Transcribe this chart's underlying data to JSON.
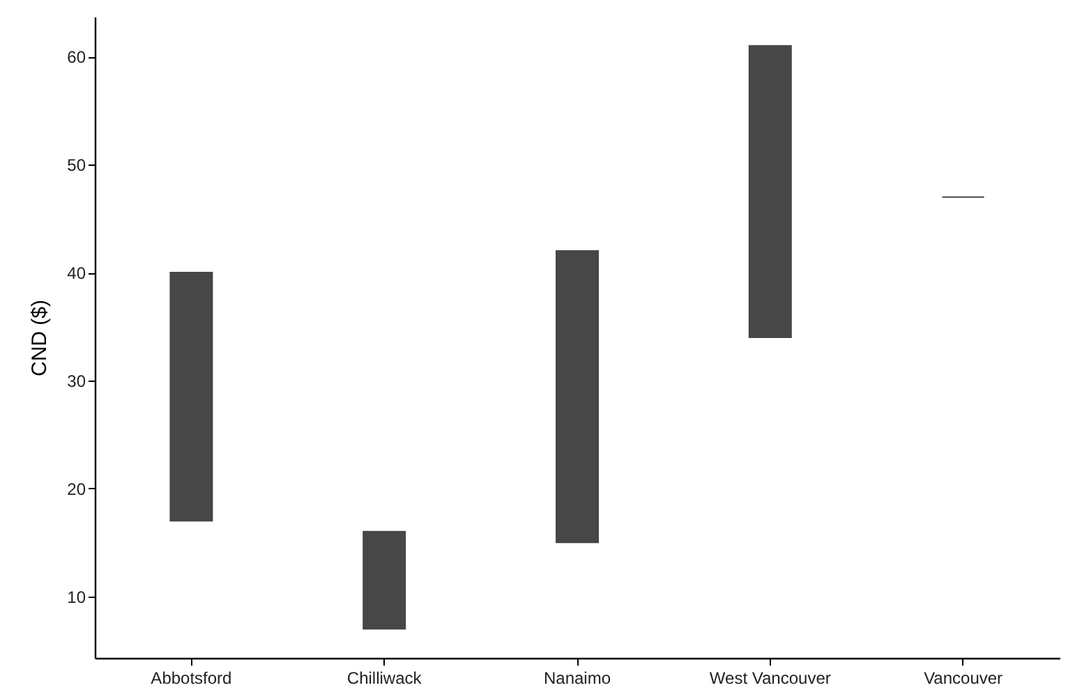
{
  "chart_data": {
    "type": "bar",
    "ylabel": "CND ($)",
    "categories": [
      "Abbotsford",
      "Chilliwack",
      "Nanaimo",
      "West Vancouver",
      "Vancouver"
    ],
    "base": [
      17,
      7,
      15,
      34,
      47
    ],
    "values": [
      23,
      9,
      27,
      27,
      0
    ],
    "color": "#474747",
    "ylim": [
      4.3,
      63.7
    ],
    "yticks": [
      10,
      20,
      30,
      40,
      50,
      60
    ],
    "grid": false
  }
}
